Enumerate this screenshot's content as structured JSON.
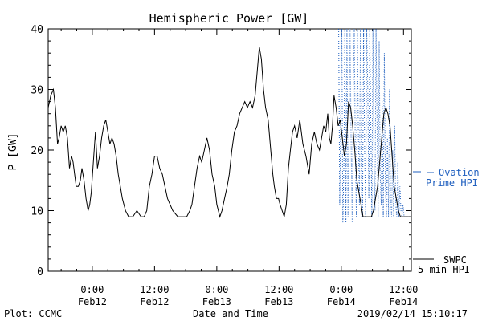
{
  "chart_data": {
    "type": "line",
    "title": "Hemispheric Power [GW]",
    "xlabel": "Date and Time",
    "ylabel": "P [GW]",
    "ylim": [
      0,
      40
    ],
    "y_ticks": [
      0,
      10,
      20,
      30,
      40
    ],
    "x_unit": "hours since 2019-02-11 00:00 UT",
    "xlim": [
      15.5,
      85.5
    ],
    "x_ticks": [
      {
        "x": 24,
        "time": "0:00",
        "date": "Feb12"
      },
      {
        "x": 36,
        "time": "12:00",
        "date": "Feb12"
      },
      {
        "x": 48,
        "time": "0:00",
        "date": "Feb13"
      },
      {
        "x": 60,
        "time": "12:00",
        "date": "Feb13"
      },
      {
        "x": 72,
        "time": "0:00",
        "date": "Feb14"
      },
      {
        "x": 84,
        "time": "12:00",
        "date": "Feb14"
      }
    ],
    "grid": false,
    "legend_position": "right",
    "series": [
      {
        "name": "SWPC 5-min HPI",
        "legend_label_line1": "SWPC",
        "legend_label_line2": "5-min HPI",
        "color": "#000000",
        "style": "solid",
        "x": [
          15.5,
          16.0,
          16.5,
          16.9,
          17.3,
          17.6,
          18.0,
          18.4,
          18.8,
          19.2,
          19.6,
          20.0,
          20.3,
          20.6,
          20.9,
          21.3,
          21.7,
          22.0,
          22.4,
          22.8,
          23.2,
          23.5,
          23.8,
          24.2,
          24.6,
          25.0,
          25.4,
          25.8,
          26.2,
          26.6,
          27.0,
          27.4,
          27.8,
          28.2,
          28.6,
          29.0,
          29.4,
          29.8,
          30.4,
          31.0,
          31.8,
          32.6,
          33.4,
          34.0,
          34.5,
          35.0,
          35.5,
          36.0,
          36.5,
          37.0,
          37.5,
          38.0,
          38.5,
          39.5,
          40.5,
          41.5,
          42.2,
          42.8,
          43.2,
          43.7,
          44.2,
          44.7,
          45.1,
          45.6,
          46.1,
          46.6,
          47.1,
          47.6,
          48.0,
          48.6,
          49.0,
          49.5,
          50.0,
          50.4,
          50.9,
          51.4,
          51.9,
          52.4,
          52.9,
          53.4,
          53.9,
          54.4,
          54.9,
          55.4,
          55.8,
          56.2,
          56.6,
          57.0,
          57.4,
          57.9,
          58.4,
          58.8,
          59.1,
          59.5,
          59.9,
          60.2,
          60.6,
          61.0,
          61.4,
          61.8,
          62.2,
          62.6,
          63.0,
          63.5,
          64.0,
          64.6,
          65.2,
          65.8,
          66.3,
          66.8,
          67.3,
          67.8,
          68.2,
          68.6,
          69.0,
          69.4,
          69.7,
          70.0,
          70.3,
          70.6,
          71.0,
          71.4,
          71.8,
          72.2,
          72.6,
          73.0,
          73.4,
          73.8,
          74.2,
          74.6,
          75.0,
          75.4,
          75.8,
          76.2,
          76.6,
          77.0,
          77.4,
          77.8,
          78.2,
          78.6,
          79.0,
          79.4,
          79.8,
          80.2,
          80.6,
          81.0,
          81.4,
          81.8,
          82.2,
          82.6,
          83.0,
          83.4,
          83.8,
          84.2,
          84.6,
          85.0,
          85.5
        ],
        "y": [
          27,
          29,
          30,
          27,
          21,
          22,
          24,
          23,
          24,
          22,
          17,
          19,
          18,
          16,
          14,
          14,
          15,
          17,
          15,
          12,
          10,
          11,
          13,
          18,
          23,
          17,
          19,
          22,
          24,
          25,
          23,
          21,
          22,
          21,
          19,
          16,
          14,
          12,
          10,
          9,
          9,
          10,
          9,
          9,
          10,
          14,
          16,
          19,
          19,
          17,
          16,
          14,
          12,
          10,
          9,
          9,
          9,
          10,
          11,
          14,
          17,
          19,
          18,
          20,
          22,
          20,
          16,
          14,
          11,
          9,
          10,
          12,
          14,
          16,
          20,
          23,
          24,
          26,
          27,
          28,
          27,
          28,
          27,
          29,
          33,
          37,
          35,
          30,
          27,
          25,
          20,
          16,
          14,
          12,
          12,
          11,
          10,
          9,
          11,
          17,
          20,
          23,
          24,
          22,
          25,
          21,
          19,
          16,
          21,
          23,
          21,
          20,
          22,
          24,
          23,
          26,
          22,
          21,
          24,
          29,
          27,
          24,
          25,
          22,
          19,
          21,
          28,
          27,
          24,
          20,
          15,
          13,
          11,
          9,
          9,
          9,
          9,
          9,
          10,
          12,
          14,
          18,
          22,
          26,
          27,
          26,
          24,
          19,
          14,
          12,
          10,
          9,
          9,
          9,
          9,
          9,
          9
        ]
      },
      {
        "name": "Ovation Prime HPI",
        "legend_label_line1": "Ovation",
        "legend_label_line2": "Prime HPI",
        "color": "#1f5fbf",
        "style": "dotted",
        "x": [
          71.5,
          71.7,
          71.9,
          72.1,
          72.3,
          72.5,
          72.7,
          72.9,
          73.1,
          73.3,
          73.5,
          73.7,
          73.9,
          74.1,
          74.3,
          74.5,
          74.7,
          74.9,
          75.1,
          75.3,
          75.5,
          75.7,
          75.9,
          76.1,
          76.3,
          76.5,
          76.7,
          76.9,
          77.1,
          77.3,
          77.5,
          77.7,
          77.9,
          78.1,
          78.3,
          78.5,
          78.7,
          78.9,
          79.1,
          79.3,
          79.5,
          79.7,
          79.9,
          80.1,
          80.3,
          80.5,
          80.7,
          80.9,
          81.1,
          81.3,
          81.5,
          81.7,
          81.9,
          82.1,
          82.3,
          82.5,
          82.7,
          82.9,
          83.1,
          83.3,
          83.5,
          83.7,
          83.9,
          84.1,
          84.3,
          84.6,
          85.0,
          85.5
        ],
        "y": [
          40,
          11,
          26,
          40,
          8,
          18,
          40,
          8,
          40,
          9,
          24,
          40,
          21,
          8,
          30,
          40,
          20,
          9,
          40,
          23,
          11,
          40,
          26,
          9,
          40,
          20,
          9,
          40,
          30,
          12,
          40,
          24,
          9,
          40,
          18,
          10,
          40,
          24,
          9,
          38,
          16,
          11,
          28,
          9,
          36,
          14,
          9,
          22,
          9,
          30,
          12,
          9,
          20,
          9,
          24,
          11,
          9,
          18,
          9,
          14,
          10,
          9,
          11,
          9,
          9,
          9,
          9,
          9
        ]
      }
    ]
  },
  "footer": {
    "left": "Plot: CCMC",
    "center": "Date and Time",
    "right": "2019/02/14 15:10:17"
  },
  "colors": {
    "axis": "#000000",
    "swpc_line": "#000000",
    "ovation_line": "#1f5fbf",
    "background": "#ffffff"
  }
}
